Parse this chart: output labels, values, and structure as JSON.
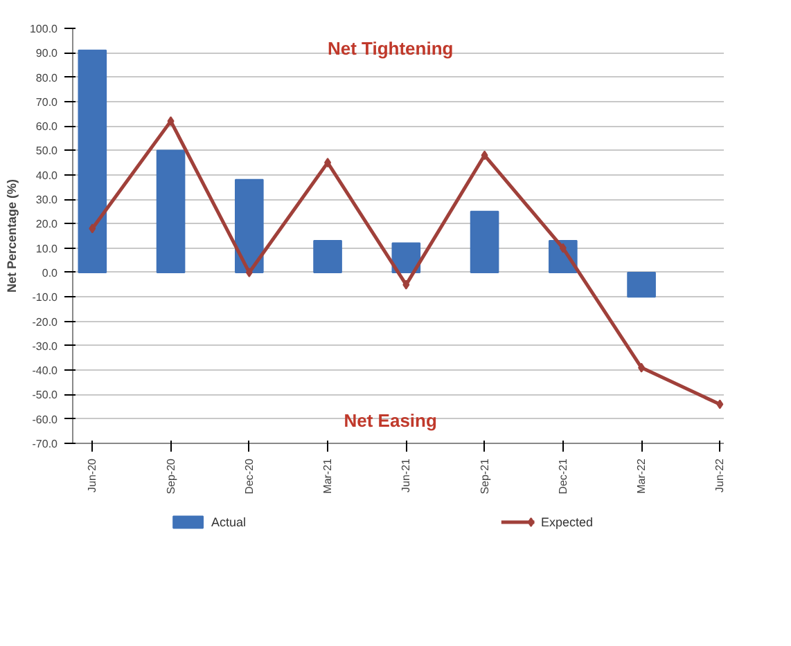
{
  "chart_data": {
    "type": "bar",
    "ylabel": "Net Percentage (%)",
    "categories": [
      "Jun-20",
      "Sep-20",
      "Dec-20",
      "Mar-21",
      "Jun-21",
      "Sep-21",
      "Dec-21",
      "Mar-22",
      "Jun-22"
    ],
    "series": [
      {
        "name": "Actual",
        "color": "#3f72b8",
        "values": [
          91,
          50,
          38,
          13,
          12,
          25,
          13,
          -10,
          null
        ]
      },
      {
        "name": "Expected",
        "type": "line",
        "color": "#a0403a",
        "marker": "diamond",
        "values": [
          18,
          62,
          0,
          45,
          -5,
          48,
          10,
          -39,
          -54
        ]
      }
    ],
    "ylim": [
      -70,
      100
    ],
    "yticks": [
      {
        "value": 100,
        "label": "100.0"
      },
      {
        "value": 90,
        "label": "90.0"
      },
      {
        "value": 80,
        "label": "80.0"
      },
      {
        "value": 70,
        "label": "70.0"
      },
      {
        "value": 60,
        "label": "60.0"
      },
      {
        "value": 50,
        "label": "50.0"
      },
      {
        "value": 40,
        "label": "40.0"
      },
      {
        "value": 30,
        "label": "30.0"
      },
      {
        "value": 20,
        "label": "20.0"
      },
      {
        "value": 10,
        "label": "10.0"
      },
      {
        "value": 0,
        "label": "0.0"
      },
      {
        "value": -10,
        "label": "-10.0"
      },
      {
        "value": -20,
        "label": "-20.0"
      },
      {
        "value": -30,
        "label": "-30.0"
      },
      {
        "value": -40,
        "label": "-40.0"
      },
      {
        "value": -50,
        "label": "-50.0"
      },
      {
        "value": -60,
        "label": "-60.0"
      },
      {
        "value": -70,
        "label": "-70.0"
      }
    ],
    "annotations": [
      "Net Tightening",
      "Net Easing"
    ],
    "grid": "y",
    "legend": "bottom"
  }
}
